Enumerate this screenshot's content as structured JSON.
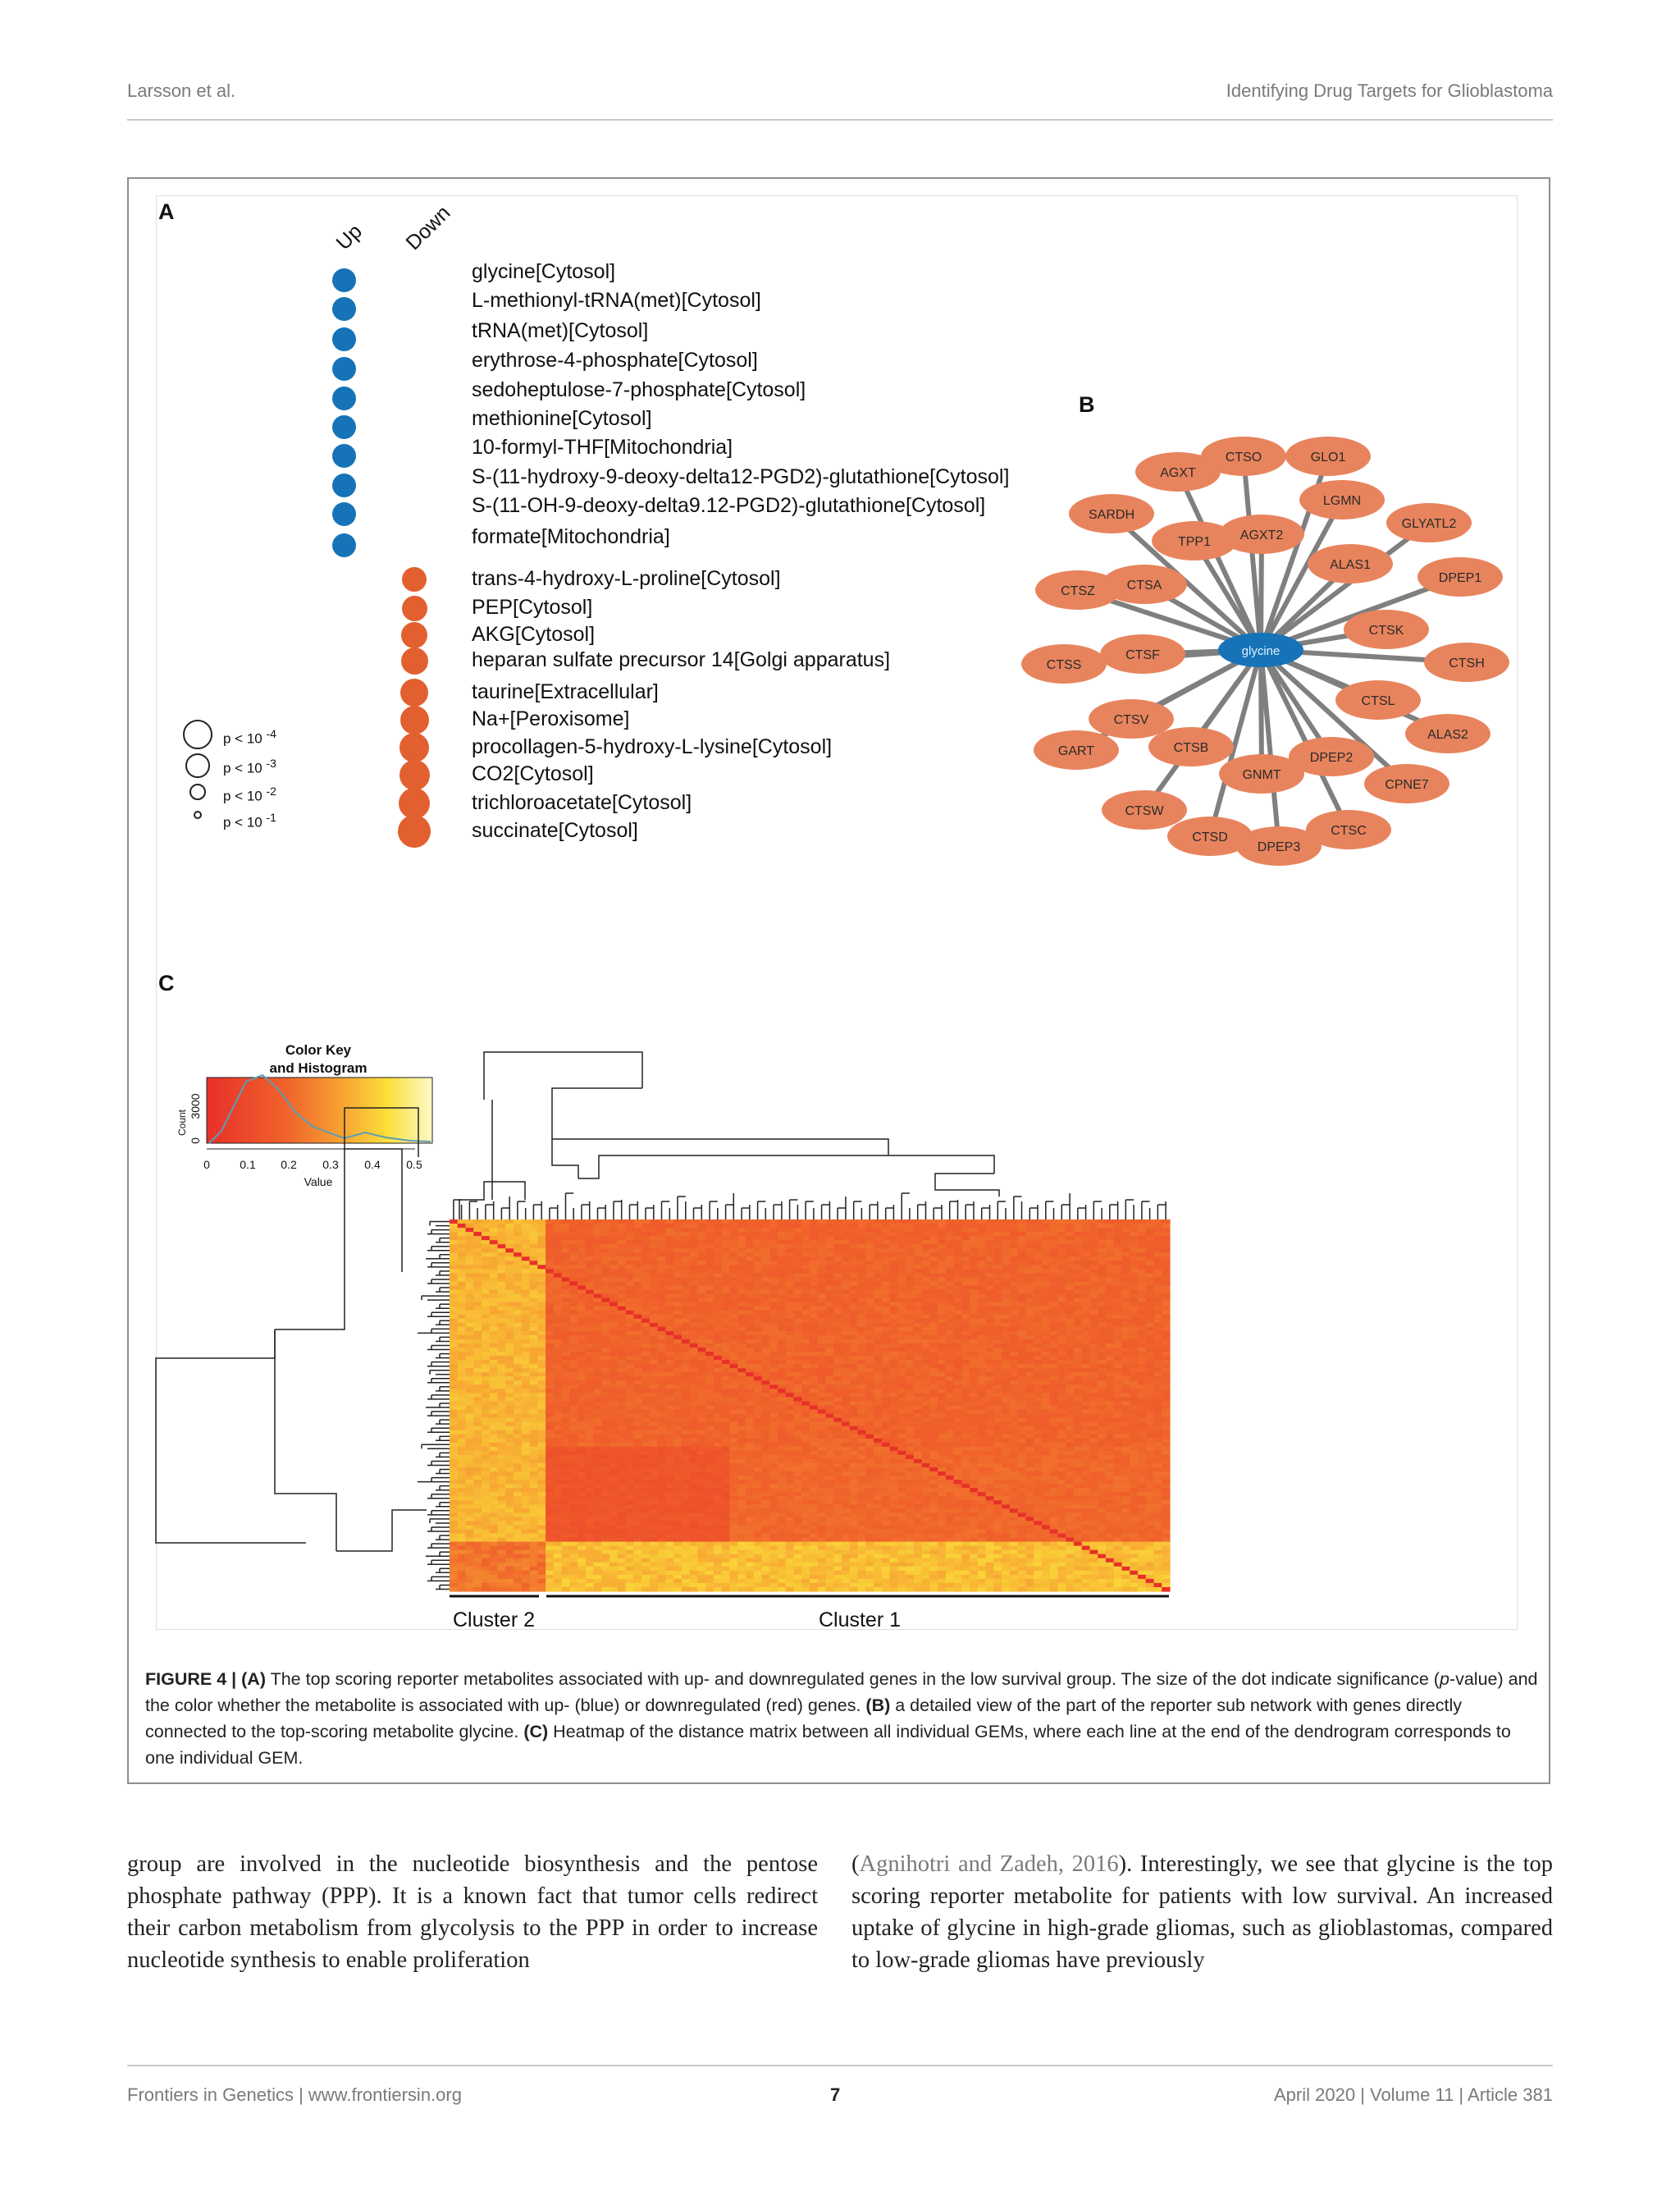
{
  "header": {
    "left": "Larsson et al.",
    "right": "Identifying Drug Targets for Glioblastoma"
  },
  "panel_labels": {
    "a": "A",
    "b": "B",
    "c": "C"
  },
  "panel_a": {
    "col_up": "Up",
    "col_down": "Down",
    "metabolites_up": [
      "glycine[Cytosol]",
      "L-methionyl-tRNA(met)[Cytosol]",
      "tRNA(met)[Cytosol]",
      "erythrose-4-phosphate[Cytosol]",
      "sedoheptulose-7-phosphate[Cytosol]",
      "methionine[Cytosol]",
      "10-formyl-THF[Mitochondria]",
      "S-(11-hydroxy-9-deoxy-delta12-PGD2)-glutathione[Cytosol]",
      "S-(11-OH-9-deoxy-delta9.12-PGD2)-glutathione[Cytosol]",
      "formate[Mitochondria]"
    ],
    "metabolites_down": [
      "trans-4-hydroxy-L-proline[Cytosol]",
      "PEP[Cytosol]",
      "AKG[Cytosol]",
      "heparan sulfate precursor 14[Golgi apparatus]",
      "taurine[Extracellular]",
      "Na+[Peroxisome]",
      "procollagen-5-hydroxy-L-lysine[Cytosol]",
      "CO2[Cytosol]",
      "trichloroacetate[Cytosol]",
      "succinate[Cytosol]"
    ],
    "legend": [
      {
        "base": "p < 10",
        "exp": "-4"
      },
      {
        "base": "p < 10",
        "exp": "-3"
      },
      {
        "base": "p < 10",
        "exp": "-2"
      },
      {
        "base": "p < 10",
        "exp": "-1"
      }
    ],
    "colors": {
      "up": "#1673b8",
      "down": "#e2602f"
    }
  },
  "panel_b": {
    "center": "glycine",
    "genes": [
      "CTSO",
      "GLO1",
      "AGXT",
      "LGMN",
      "SARDH",
      "GLYATL2",
      "TPP1",
      "AGXT2",
      "ALAS1",
      "DPEP1",
      "CTSZ",
      "CTSA",
      "CTSK",
      "CTSS",
      "CTSF",
      "CTSH",
      "CTSL",
      "CTSV",
      "ALAS2",
      "GART",
      "CTSB",
      "DPEP2",
      "GNMT",
      "CPNE7",
      "CTSW",
      "CTSC",
      "CTSD",
      "DPEP3"
    ],
    "colors": {
      "center": "#1673b8",
      "gene": "#e8845d",
      "edge": "#7f7f7f"
    }
  },
  "panel_c": {
    "color_key_title_1": "Color Key",
    "color_key_title_2": "and Histogram",
    "ylabel": "Count",
    "yticks": [
      "0",
      "3000"
    ],
    "xlabel": "Value",
    "xticks": [
      "0",
      "0.1",
      "0.2",
      "0.3",
      "0.4",
      "0.5"
    ],
    "cluster_labels": [
      "Cluster 2",
      "Cluster 1"
    ]
  },
  "caption": {
    "label": "FIGURE 4 |",
    "a_tag": "(A)",
    "a_text": " The top scoring reporter metabolites associated with up- and downregulated genes in the low survival group. The size of the dot indicate significance (",
    "p_italic": "p",
    "a_text2": "-value) and the color whether the metabolite is associated with up- (blue) or downregulated (red) genes. ",
    "b_tag": "(B)",
    "b_text": " a detailed view of the part of the reporter sub network with genes directly connected to the top-scoring metabolite glycine. ",
    "c_tag": "(C)",
    "c_text": " Heatmap of the distance matrix between all individual GEMs, where each line at the end of the dendrogram corresponds to one individual GEM."
  },
  "body": {
    "left": "group are involved in the nucleotide biosynthesis and the pentose phosphate pathway (PPP). It is a known fact that tumor cells redirect their carbon metabolism from glycolysis to the PPP in order to increase nucleotide synthesis to enable proliferation",
    "right_open": "(",
    "right_cite": "Agnihotri and Zadeh, 2016",
    "right_rest": "). Interestingly, we see that glycine is the top scoring reporter metabolite for patients with low survival. An increased uptake of glycine in high-grade gliomas, such as glioblastomas, compared to low-grade gliomas have previously"
  },
  "footer": {
    "left": "Frontiers in Genetics | www.frontiersin.org",
    "page": "7",
    "right": "April 2020 | Volume 11 | Article 381"
  }
}
